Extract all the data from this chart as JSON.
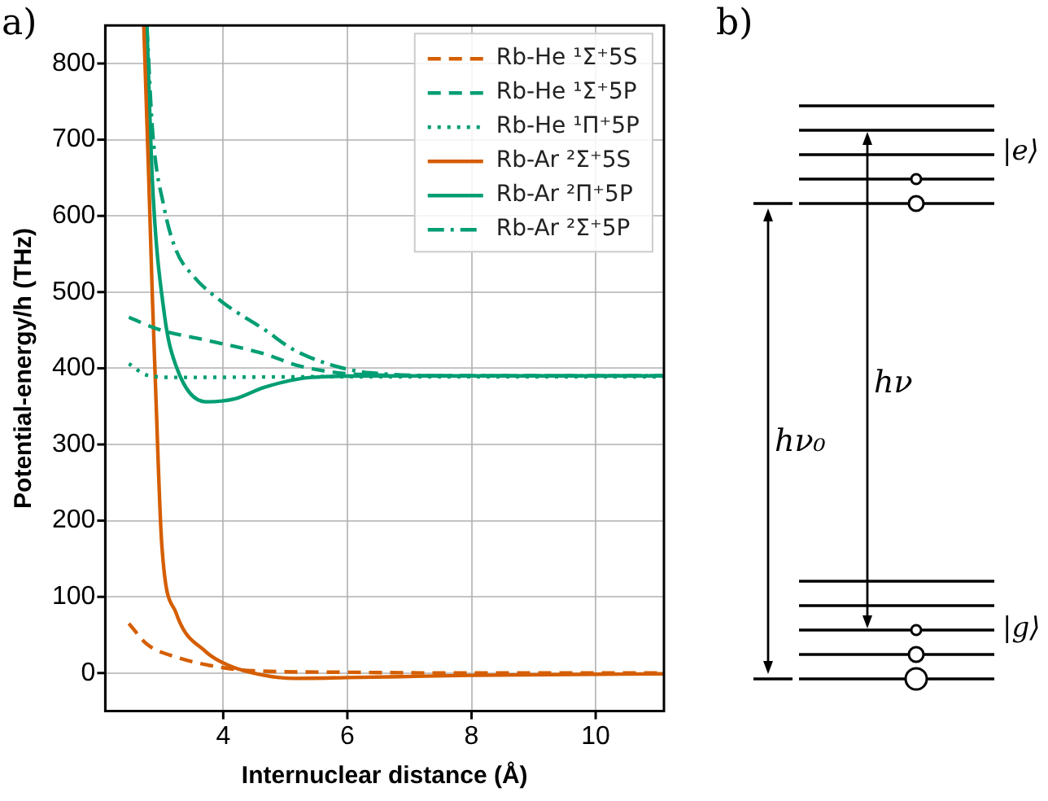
{
  "chart_data": {
    "type": "line",
    "xlabel": "Internuclear distance (Å)",
    "ylabel": "Potential-energy/h (THz)",
    "xlim": [
      2.1,
      11.1
    ],
    "xticks": [
      4,
      6,
      8,
      10
    ],
    "ylim": [
      -50,
      850
    ],
    "yticks": [
      0,
      100,
      200,
      300,
      400,
      500,
      600,
      700,
      800
    ],
    "grid": true,
    "legend": "top right",
    "marker": "none",
    "annotations": [
      "a)",
      "b)",
      "|e⟩",
      "|g⟩",
      "hν",
      "hν₀"
    ],
    "series": [
      {
        "name": "Rb-He ¹Σ⁺5S",
        "color": "#d55e00",
        "line_style": "dashed",
        "x": [
          2.48,
          2.77,
          3.24,
          4.0,
          4.47,
          6,
          8,
          11.1
        ],
        "values": [
          65,
          38,
          21,
          7,
          3,
          1,
          0,
          0
        ]
      },
      {
        "name": "Rb-He ¹Σ⁺5P",
        "color": "#009e73",
        "line_style": "dashed",
        "x": [
          2.48,
          2.96,
          3.72,
          4.66,
          5.23,
          6.18,
          8,
          11.1
        ],
        "values": [
          467,
          451,
          437,
          419,
          403,
          392,
          390,
          390
        ]
      },
      {
        "name": "Rb-He ¹Π⁺5P",
        "color": "#009e73",
        "line_style": "dotted",
        "x": [
          2.48,
          2.77,
          3.24,
          6,
          11.1
        ],
        "values": [
          406,
          391,
          388,
          389,
          389
        ]
      },
      {
        "name": "Rb-Ar ²Σ⁺5S",
        "color": "#d55e00",
        "line_style": "solid",
        "x": [
          2.72,
          2.8,
          2.86,
          2.91,
          3.01,
          3.24,
          3.72,
          4.09,
          4.66,
          5.14,
          6,
          8,
          11.1
        ],
        "values": [
          850,
          650,
          490,
          375,
          169,
          79,
          28,
          10,
          -3,
          -7,
          -6,
          -3,
          -1
        ]
      },
      {
        "name": "Rb-Ar ²Π⁺5P",
        "color": "#009e73",
        "line_style": "solid",
        "x": [
          2.77,
          2.86,
          3.05,
          3.24,
          3.72,
          4.19,
          4.66,
          5.42,
          6.5,
          11.1
        ],
        "values": [
          850,
          644,
          472,
          403,
          356,
          360,
          375,
          388,
          390,
          390
        ]
      },
      {
        "name": "Rb-Ar ²Σ⁺5P",
        "color": "#009e73",
        "line_style": "dashdot",
        "x": [
          2.77,
          2.86,
          3.05,
          3.24,
          3.53,
          4.0,
          4.66,
          5.14,
          5.8,
          6.37,
          8,
          11.1
        ],
        "values": [
          850,
          713,
          610,
          555,
          520,
          486,
          451,
          424,
          403,
          394,
          390,
          390
        ]
      }
    ]
  }
}
